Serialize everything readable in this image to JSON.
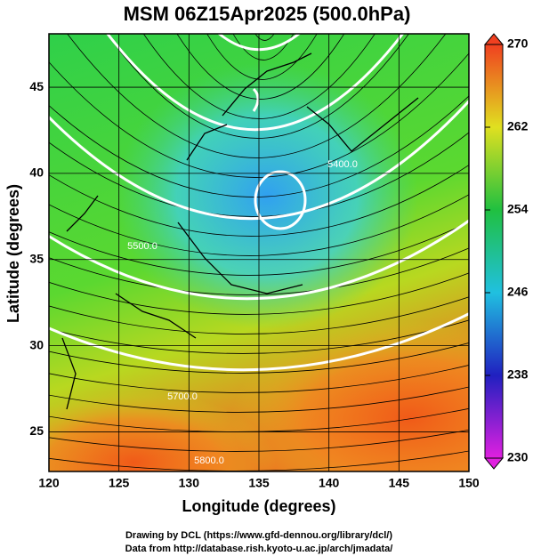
{
  "title": "MSM 06Z15Apr2025 (500.0hPa)",
  "x_axis": {
    "label": "Longitude (degrees)",
    "xlim": [
      120,
      150
    ],
    "xticks": [
      120,
      125,
      130,
      135,
      140,
      145,
      150
    ]
  },
  "y_axis": {
    "label": "Latitude  (degrees)",
    "ylim": [
      22.7,
      48.1
    ],
    "yticks": [
      25,
      30,
      35,
      40,
      45
    ]
  },
  "colorbar": {
    "lim": [
      230,
      270
    ],
    "ticks": [
      230,
      238,
      246,
      254,
      262,
      270
    ]
  },
  "contour_labels": [
    "5800.0",
    "5700.0",
    "5500.0",
    "5400.0"
  ],
  "footer": [
    "Drawing by DCL (https://www.gfd-dennou.org/library/dcl/)",
    "Data from http://database.rish.kyoto-u.ac.jp/arch/jmadata/"
  ]
}
